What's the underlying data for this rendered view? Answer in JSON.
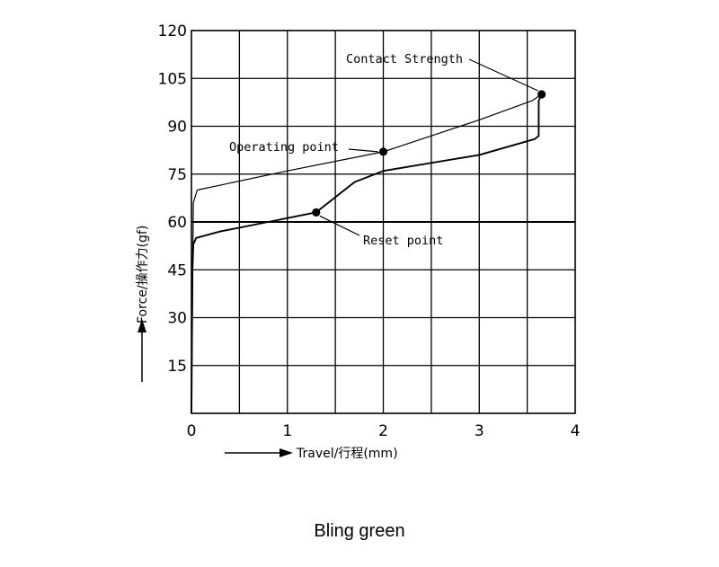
{
  "chart_data": {
    "type": "line",
    "xlabel": "Travel/行程(mm)",
    "ylabel": "Force/操作力(gf)",
    "xlim": [
      0,
      4
    ],
    "ylim": [
      0,
      120
    ],
    "xticks": [
      0,
      1,
      2,
      3,
      4
    ],
    "yticks": [
      15,
      30,
      45,
      60,
      75,
      90,
      105,
      120
    ],
    "x_tick_labels": [
      "0",
      "1",
      "2",
      "3",
      "4"
    ],
    "y_tick_labels": [
      "15",
      "30",
      "45",
      "60",
      "75",
      "90",
      "105",
      "120"
    ],
    "grid": true,
    "series": [
      {
        "values": [
          [
            0,
            0
          ],
          [
            0.02,
            66
          ],
          [
            0.06,
            70
          ],
          [
            1.0,
            76
          ],
          [
            2.0,
            82
          ],
          [
            3.0,
            92
          ],
          [
            3.55,
            98
          ],
          [
            3.65,
            100
          ]
        ]
      },
      {
        "values": [
          [
            3.65,
            100
          ],
          [
            3.62,
            98
          ],
          [
            3.62,
            87
          ],
          [
            3.58,
            86
          ],
          [
            3.0,
            81
          ],
          [
            2.0,
            76
          ],
          [
            1.7,
            72.5
          ],
          [
            1.3,
            63
          ],
          [
            0.8,
            60
          ],
          [
            0.3,
            57
          ],
          [
            0.05,
            55
          ],
          [
            0.02,
            53
          ],
          [
            0.01,
            45
          ],
          [
            0,
            0
          ]
        ]
      }
    ],
    "annotations": [
      {
        "label": "Contact Strength",
        "x": 3.65,
        "y": 100
      },
      {
        "label": "Operating point",
        "x": 2.0,
        "y": 82
      },
      {
        "label": "Reset point",
        "x": 1.3,
        "y": 63
      }
    ]
  },
  "caption": "Bling green"
}
